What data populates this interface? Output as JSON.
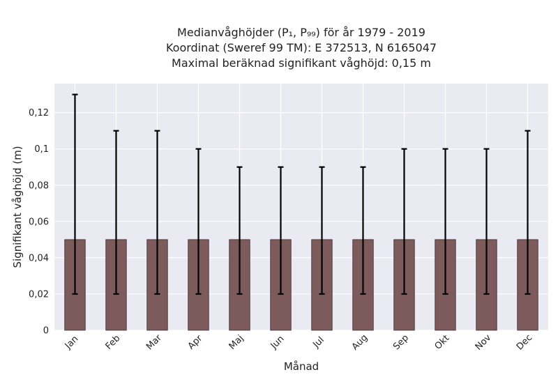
{
  "chart_data": {
    "type": "bar",
    "title_lines": [
      "Medianvåghöjder (P₁, P₉₉) för år 1979 - 2019",
      "Koordinat (Sweref 99 TM): E 372513, N 6165047",
      "Maximal beräknad signifikant våghöjd: 0,15 m"
    ],
    "xlabel": "Månad",
    "ylabel": "Signifikant våghöjd (m)",
    "categories": [
      "Jan",
      "Feb",
      "Mar",
      "Apr",
      "Maj",
      "Jun",
      "Jul",
      "Aug",
      "Sep",
      "Okt",
      "Nov",
      "Dec"
    ],
    "values": [
      0.05,
      0.05,
      0.05,
      0.05,
      0.05,
      0.05,
      0.05,
      0.05,
      0.05,
      0.05,
      0.05,
      0.05
    ],
    "error_low": [
      0.02,
      0.02,
      0.02,
      0.02,
      0.02,
      0.02,
      0.02,
      0.02,
      0.02,
      0.02,
      0.02,
      0.02
    ],
    "error_high": [
      0.13,
      0.11,
      0.11,
      0.1,
      0.09,
      0.09,
      0.09,
      0.09,
      0.1,
      0.1,
      0.1,
      0.11
    ],
    "ylim": [
      0,
      0.136
    ],
    "yticks": [
      0,
      0.02,
      0.04,
      0.06,
      0.08,
      0.1,
      0.12
    ],
    "ytick_labels": [
      "0",
      "0,02",
      "0,04",
      "0,06",
      "0,08",
      "0,1",
      "0,12"
    ],
    "grid": true,
    "colors": {
      "bar": "#7d5a5c",
      "bar_edge": "#3a2a2b",
      "error": "#000000",
      "plot_bg": "#eaeaf2",
      "grid": "#ffffff"
    }
  }
}
